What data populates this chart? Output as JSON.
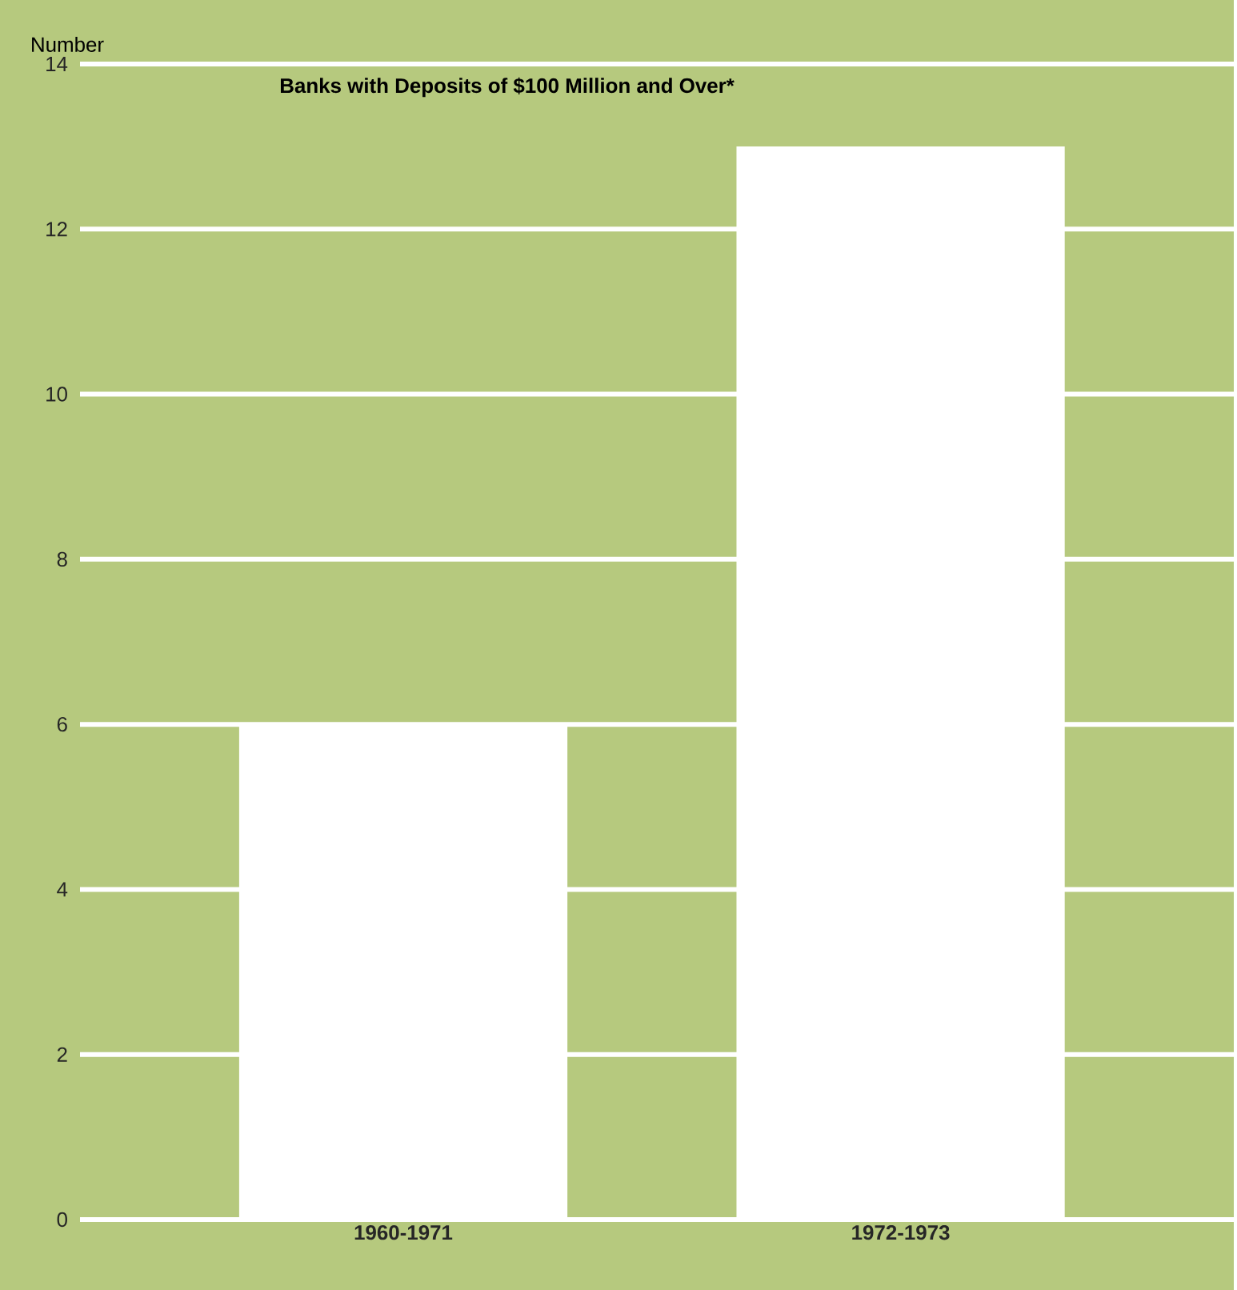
{
  "chart_data": {
    "type": "bar",
    "title": "Banks with Deposits of $100 Million and Over*",
    "ylabel": "Number",
    "categories": [
      "1960-1971",
      "1972-1973"
    ],
    "values": [
      6,
      13
    ],
    "color": "#ffffff",
    "ylim": [
      0,
      14
    ],
    "yticks": [
      0,
      2,
      4,
      6,
      8,
      10,
      12,
      14
    ],
    "grid": "y"
  }
}
